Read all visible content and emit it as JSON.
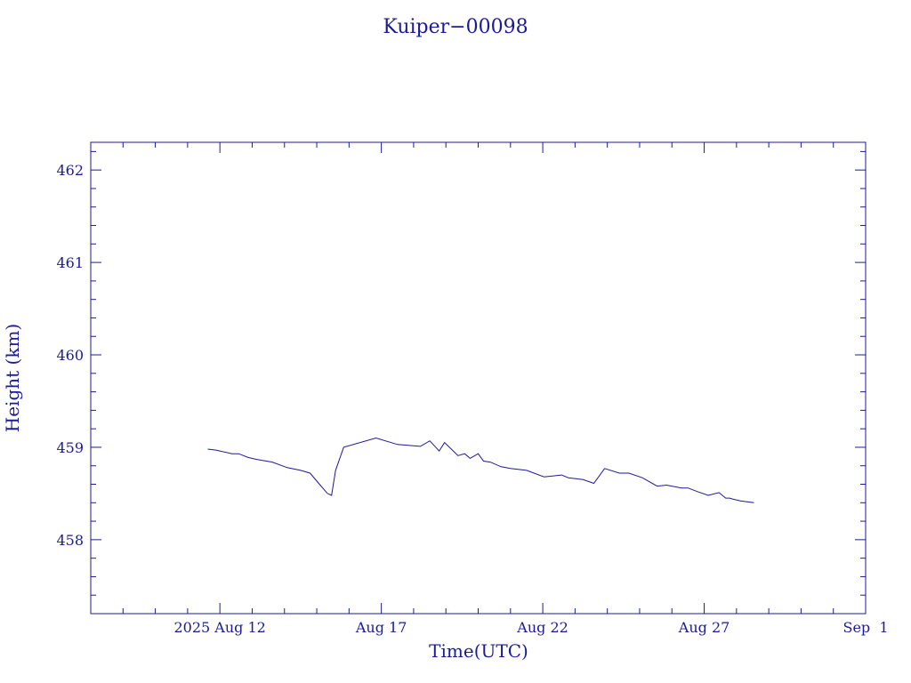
{
  "chart_data": {
    "type": "line",
    "title": "Kuiper−00098",
    "xlabel": "Time(UTC)",
    "ylabel": "Height (km)",
    "colors": {
      "axis": "#1a1a9c",
      "line": "#1a1a9c"
    },
    "grid": false,
    "xlim": [
      "2025-08-08",
      "2025-09-01"
    ],
    "ylim": [
      457.2,
      462.3
    ],
    "xticks": [
      {
        "date": "2025-08-12",
        "label": "2025 Aug 12"
      },
      {
        "date": "2025-08-17",
        "label": "Aug 17"
      },
      {
        "date": "2025-08-22",
        "label": "Aug 22"
      },
      {
        "date": "2025-08-27",
        "label": "Aug 27"
      },
      {
        "date": "2025-09-01",
        "label": "Sep  1"
      }
    ],
    "yticks": [
      {
        "value": 458,
        "label": "458"
      },
      {
        "value": 459,
        "label": "459"
      },
      {
        "value": 460,
        "label": "460"
      },
      {
        "value": 461,
        "label": "461"
      },
      {
        "value": 462,
        "label": "462"
      }
    ],
    "series": [
      {
        "x": [
          "2025-08-11T15:00",
          "2025-08-11T21:00",
          "2025-08-12T09:00",
          "2025-08-12T14:00",
          "2025-08-12T21:00",
          "2025-08-13T03:00",
          "2025-08-13T15:00",
          "2025-08-14T02:00",
          "2025-08-14T12:00",
          "2025-08-14T19:00",
          "2025-08-15T02:00",
          "2025-08-15T08:00",
          "2025-08-15T11:00",
          "2025-08-15T14:00",
          "2025-08-15T20:00",
          "2025-08-16T20:00",
          "2025-08-17T12:00",
          "2025-08-18T05:00",
          "2025-08-18T12:00",
          "2025-08-18T19:00",
          "2025-08-18T23:00",
          "2025-08-19T04:00",
          "2025-08-19T09:00",
          "2025-08-19T14:00",
          "2025-08-19T18:00",
          "2025-08-20T00:00",
          "2025-08-20T04:00",
          "2025-08-20T09:00",
          "2025-08-20T17:00",
          "2025-08-21T00:00",
          "2025-08-21T12:00",
          "2025-08-22T01:00",
          "2025-08-22T14:00",
          "2025-08-22T19:00",
          "2025-08-23T06:00",
          "2025-08-23T14:00",
          "2025-08-23T22:00",
          "2025-08-24T09:00",
          "2025-08-24T16:00",
          "2025-08-25T02:00",
          "2025-08-25T13:00",
          "2025-08-25T20:00",
          "2025-08-26T07:00",
          "2025-08-26T12:00",
          "2025-08-26T19:00",
          "2025-08-27T03:00",
          "2025-08-27T11:00",
          "2025-08-27T16:00",
          "2025-08-27T19:00",
          "2025-08-27T21:00",
          "2025-08-28T03:00",
          "2025-08-28T13:00"
        ],
        "values": [
          458.98,
          458.97,
          458.93,
          458.93,
          458.89,
          458.87,
          458.84,
          458.78,
          458.75,
          458.72,
          458.6,
          458.5,
          458.48,
          458.75,
          459.0,
          459.1,
          459.03,
          459.01,
          459.07,
          458.96,
          459.05,
          458.98,
          458.91,
          458.93,
          458.88,
          458.93,
          458.85,
          458.84,
          458.79,
          458.77,
          458.75,
          458.68,
          458.7,
          458.67,
          458.65,
          458.61,
          458.77,
          458.72,
          458.72,
          458.67,
          458.58,
          458.59,
          458.56,
          458.56,
          458.52,
          458.48,
          458.51,
          458.45,
          458.45,
          458.44,
          458.42,
          458.4
        ]
      }
    ]
  }
}
